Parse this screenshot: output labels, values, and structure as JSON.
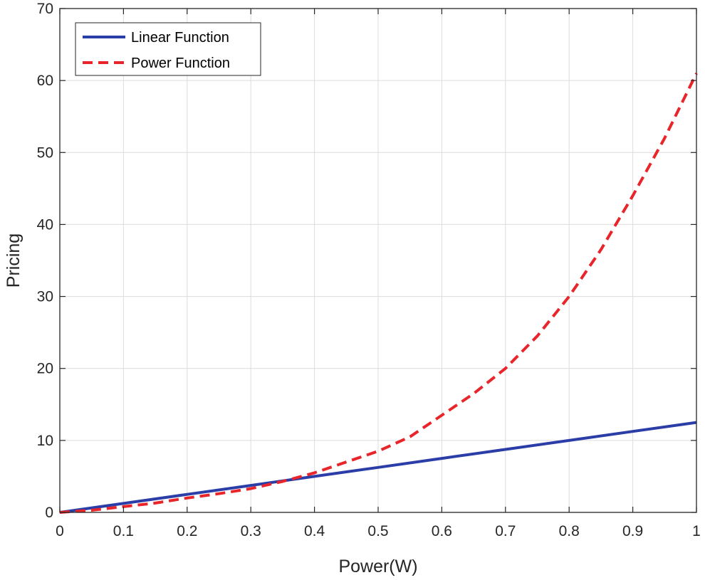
{
  "chart_data": {
    "type": "line",
    "title": "",
    "xlabel": "Power(W)",
    "ylabel": "Pricing",
    "xlim": [
      0,
      1
    ],
    "ylim": [
      0,
      70
    ],
    "xticks": [
      0,
      0.1,
      0.2,
      0.3,
      0.4,
      0.5,
      0.6,
      0.7,
      0.8,
      0.9,
      1
    ],
    "xtick_labels": [
      "0",
      "0.1",
      "0.2",
      "0.3",
      "0.4",
      "0.5",
      "0.6",
      "0.7",
      "0.8",
      "0.9",
      "1"
    ],
    "yticks": [
      0,
      10,
      20,
      30,
      40,
      50,
      60,
      70
    ],
    "ytick_labels": [
      "0",
      "10",
      "20",
      "30",
      "40",
      "50",
      "60",
      "70"
    ],
    "grid": true,
    "legend_position": "top-left",
    "series": [
      {
        "name": "Linear Function",
        "color": "#2b3ea8",
        "style": "solid",
        "x": [
          0,
          0.1,
          0.2,
          0.3,
          0.4,
          0.5,
          0.6,
          0.7,
          0.8,
          0.9,
          1.0
        ],
        "y": [
          0,
          1.25,
          2.5,
          3.75,
          5.0,
          6.25,
          7.5,
          8.75,
          10.0,
          11.25,
          12.5
        ]
      },
      {
        "name": "Power Function",
        "color": "#e8252a",
        "style": "dashed",
        "x": [
          0,
          0.05,
          0.1,
          0.15,
          0.2,
          0.25,
          0.3,
          0.35,
          0.4,
          0.45,
          0.5,
          0.55,
          0.6,
          0.65,
          0.7,
          0.75,
          0.8,
          0.85,
          0.9,
          0.95,
          1.0
        ],
        "y": [
          0,
          0.3,
          0.8,
          1.3,
          2.0,
          2.6,
          3.3,
          4.3,
          5.5,
          7.0,
          8.5,
          10.5,
          13.5,
          16.5,
          20.0,
          24.5,
          30.0,
          36.5,
          44.0,
          52.0,
          61.0
        ]
      }
    ]
  }
}
